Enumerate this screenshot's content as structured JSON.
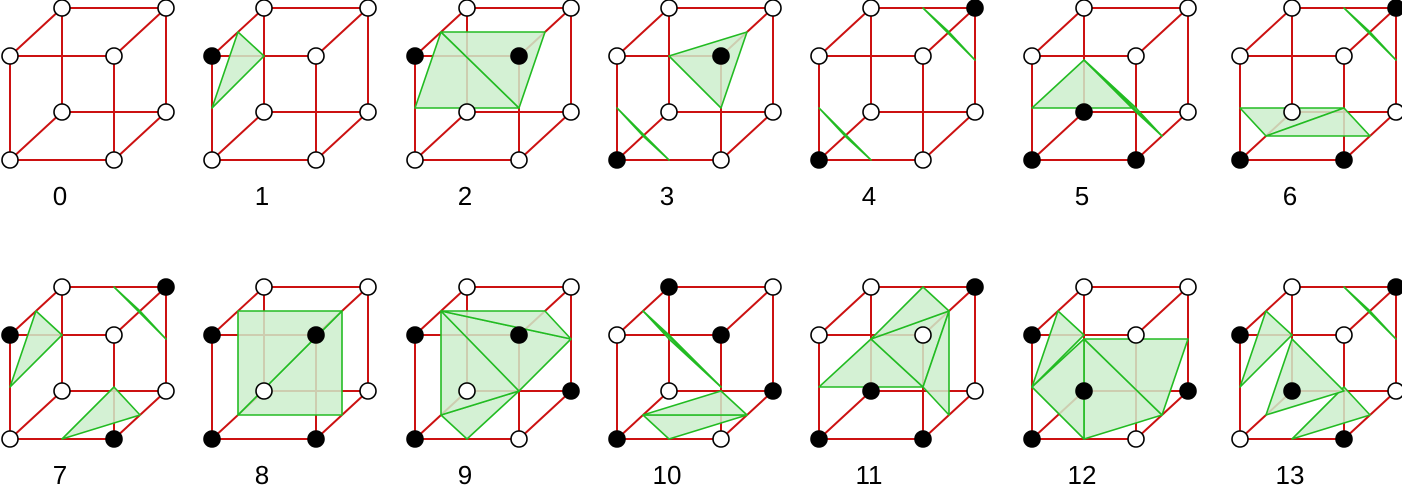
{
  "vertex_colors": {
    "inside": "#000000",
    "outside": "#ffffff"
  },
  "edge_color": "#cc1111",
  "surface_fill": "#cdeecd",
  "surface_stroke": "#22bb22",
  "cases": [
    {
      "label": "0",
      "inside": [],
      "triangles": []
    },
    {
      "label": "1",
      "inside": [
        4
      ],
      "triangles": [
        [
          [
            4,
            5
          ],
          [
            4,
            0
          ],
          [
            4,
            7
          ]
        ]
      ]
    },
    {
      "label": "2",
      "inside": [
        4,
        5
      ],
      "triangles": [
        [
          [
            4,
            7
          ],
          [
            4,
            0
          ],
          [
            5,
            1
          ]
        ],
        [
          [
            4,
            7
          ],
          [
            5,
            1
          ],
          [
            5,
            6
          ]
        ]
      ]
    },
    {
      "label": "3",
      "inside": [
        0,
        5
      ],
      "triangles": [
        [
          [
            0,
            1
          ],
          [
            0,
            3
          ],
          [
            0,
            4
          ]
        ],
        [
          [
            5,
            4
          ],
          [
            5,
            1
          ],
          [
            5,
            6
          ]
        ]
      ]
    },
    {
      "label": "4",
      "inside": [
        0,
        6
      ],
      "triangles": [
        [
          [
            0,
            1
          ],
          [
            0,
            3
          ],
          [
            0,
            4
          ]
        ],
        [
          [
            6,
            2
          ],
          [
            6,
            5
          ],
          [
            6,
            7
          ]
        ]
      ]
    },
    {
      "label": "5",
      "inside": [
        0,
        1,
        3
      ],
      "triangles": [
        [
          [
            0,
            4
          ],
          [
            1,
            5
          ],
          [
            3,
            7
          ]
        ],
        [
          [
            1,
            5
          ],
          [
            1,
            2
          ],
          [
            3,
            7
          ]
        ],
        [
          [
            1,
            2
          ],
          [
            3,
            2
          ],
          [
            3,
            7
          ]
        ]
      ]
    },
    {
      "label": "6",
      "inside": [
        0,
        1,
        6
      ],
      "triangles": [
        [
          [
            0,
            4
          ],
          [
            0,
            3
          ],
          [
            1,
            5
          ]
        ],
        [
          [
            0,
            3
          ],
          [
            1,
            2
          ],
          [
            1,
            5
          ]
        ],
        [
          [
            6,
            2
          ],
          [
            6,
            5
          ],
          [
            6,
            7
          ]
        ]
      ]
    },
    {
      "label": "7",
      "inside": [
        1,
        4,
        6
      ],
      "triangles": [
        [
          [
            1,
            0
          ],
          [
            1,
            2
          ],
          [
            1,
            5
          ]
        ],
        [
          [
            4,
            0
          ],
          [
            4,
            5
          ],
          [
            4,
            7
          ]
        ],
        [
          [
            6,
            2
          ],
          [
            6,
            5
          ],
          [
            6,
            7
          ]
        ]
      ]
    },
    {
      "label": "8",
      "inside": [
        0,
        1,
        4,
        5
      ],
      "triangles": [
        [
          [
            0,
            3
          ],
          [
            1,
            2
          ],
          [
            5,
            6
          ]
        ],
        [
          [
            0,
            3
          ],
          [
            5,
            6
          ],
          [
            4,
            7
          ]
        ]
      ]
    },
    {
      "label": "9",
      "inside": [
        0,
        2,
        5,
        4
      ],
      "triangles": [
        [
          [
            0,
            3
          ],
          [
            0,
            1
          ],
          [
            2,
            3
          ]
        ],
        [
          [
            0,
            3
          ],
          [
            2,
            3
          ],
          [
            4,
            7
          ]
        ],
        [
          [
            2,
            3
          ],
          [
            2,
            6
          ],
          [
            4,
            7
          ]
        ],
        [
          [
            2,
            6
          ],
          [
            5,
            6
          ],
          [
            4,
            7
          ]
        ]
      ]
    },
    {
      "label": "10",
      "inside": [
        0,
        2,
        5,
        7
      ],
      "triangles": [
        [
          [
            0,
            1
          ],
          [
            0,
            3
          ],
          [
            2,
            1
          ]
        ],
        [
          [
            0,
            3
          ],
          [
            2,
            1
          ],
          [
            2,
            3
          ]
        ],
        [
          [
            5,
            4
          ],
          [
            5,
            1
          ],
          [
            7,
            4
          ]
        ],
        [
          [
            5,
            1
          ],
          [
            7,
            3
          ],
          [
            7,
            4
          ]
        ]
      ]
    },
    {
      "label": "11",
      "inside": [
        0,
        1,
        3,
        6
      ],
      "triangles": [
        [
          [
            0,
            4
          ],
          [
            1,
            5
          ],
          [
            3,
            7
          ]
        ],
        [
          [
            1,
            5
          ],
          [
            3,
            7
          ],
          [
            6,
            5
          ]
        ],
        [
          [
            3,
            7
          ],
          [
            6,
            5
          ],
          [
            6,
            7
          ]
        ],
        [
          [
            1,
            5
          ],
          [
            1,
            2
          ],
          [
            6,
            5
          ]
        ]
      ]
    },
    {
      "label": "12",
      "inside": [
        0,
        2,
        3,
        4
      ],
      "triangles": [
        [
          [
            4,
            5
          ],
          [
            4,
            0
          ],
          [
            4,
            7
          ]
        ],
        [
          [
            0,
            1
          ],
          [
            2,
            1
          ],
          [
            3,
            7
          ]
        ],
        [
          [
            2,
            1
          ],
          [
            2,
            6
          ],
          [
            3,
            7
          ]
        ],
        [
          [
            0,
            1
          ],
          [
            3,
            7
          ],
          [
            0,
            4
          ]
        ]
      ]
    },
    {
      "label": "13",
      "inside": [
        1,
        3,
        4,
        6
      ],
      "triangles": [
        [
          [
            1,
            0
          ],
          [
            1,
            2
          ],
          [
            1,
            5
          ]
        ],
        [
          [
            3,
            0
          ],
          [
            3,
            2
          ],
          [
            3,
            7
          ]
        ],
        [
          [
            4,
            0
          ],
          [
            4,
            5
          ],
          [
            4,
            7
          ]
        ],
        [
          [
            6,
            2
          ],
          [
            6,
            5
          ],
          [
            6,
            7
          ]
        ]
      ]
    }
  ]
}
